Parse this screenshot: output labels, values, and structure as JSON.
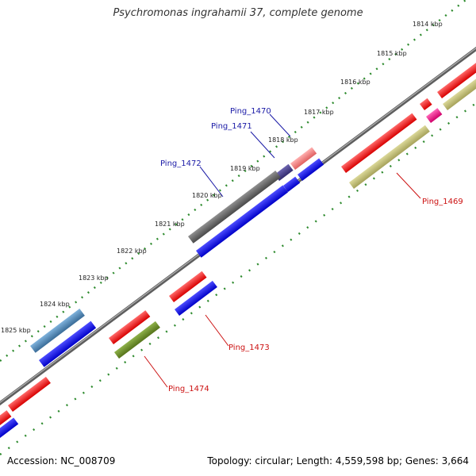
{
  "title": "Psychromonas ingrahamii 37, complete genome",
  "accession": "Accession: NC_008709",
  "summary": "Topology: circular; Length: 4,559,598 bp; Genes: 3,664",
  "ticks": [
    "1814 kbp",
    "1815 kbp",
    "1816 kbp",
    "1817 kbp",
    "1818 kbp",
    "1819 kbp",
    "1820 kbp",
    "1821 kbp",
    "1822 kbp",
    "1823 kbp",
    "1824 kbp",
    "1825 kbp"
  ],
  "gene_labels": {
    "ping_1470": "Ping_1470",
    "ping_1471": "Ping_1471",
    "ping_1472": "Ping_1472",
    "ping_1469": "Ping_1469",
    "ping_1473": "Ping_1473",
    "ping_1474": "Ping_1474"
  },
  "colors": {
    "backbone": "#7f7f7f",
    "tick_dots": "#2e8b2e",
    "label_blue": "#1a1aa6",
    "label_red": "#cc1111",
    "gene_red": "#ff0000",
    "gene_blue": "#0000ee",
    "gene_gray": "#606060",
    "gene_tan": "#bdb76b",
    "gene_olive": "#6b8e23",
    "gene_steelblue": "#4682b4",
    "gene_pink": "#f08080",
    "gene_purple": "#483d8b",
    "gene_magenta": "#ff1493"
  }
}
